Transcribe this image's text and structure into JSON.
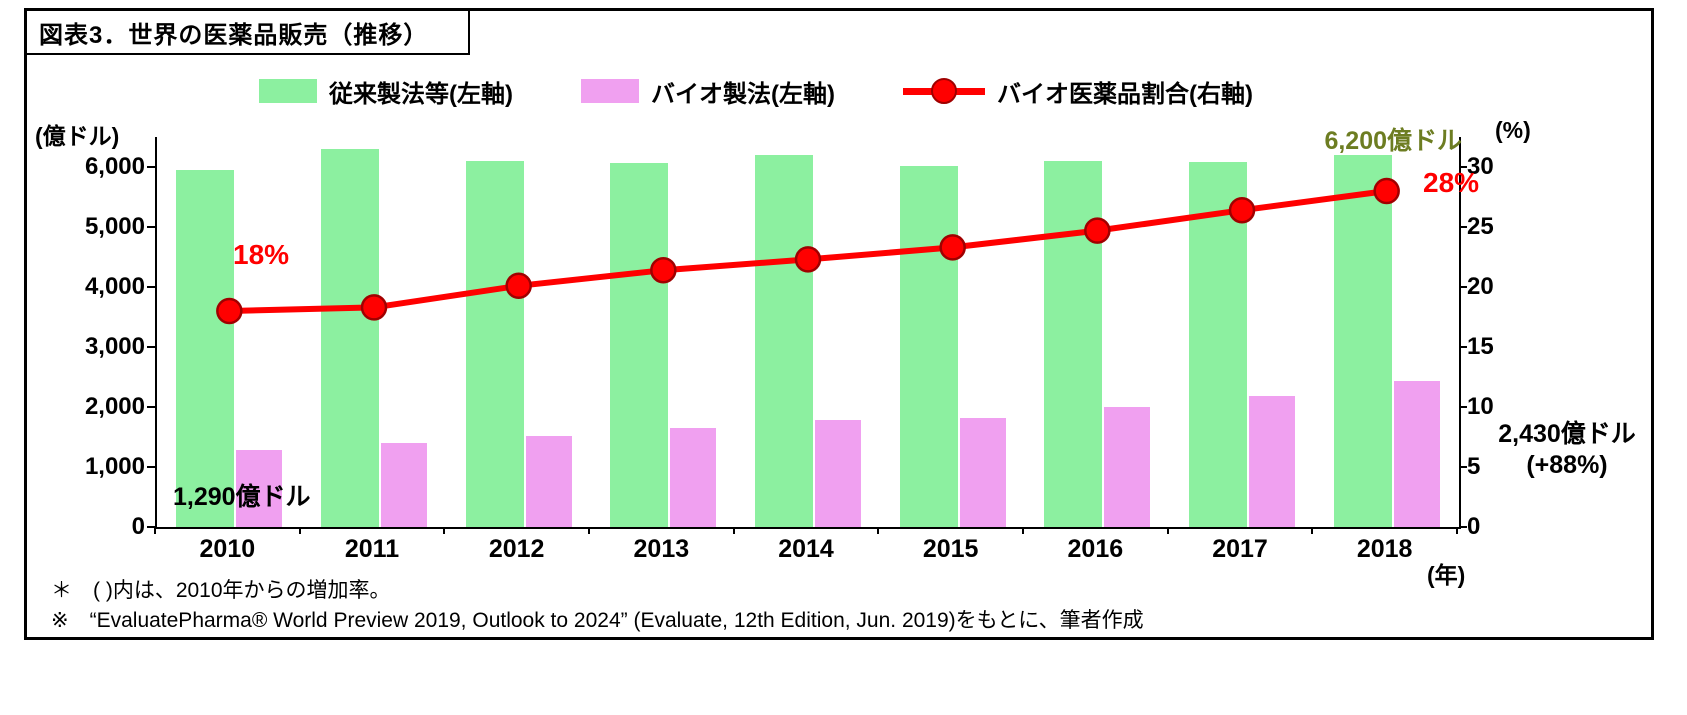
{
  "figure_title": "図表3．世界の医薬品販売（推移）",
  "legend": {
    "items": [
      {
        "label": "従来製法等(左軸)",
        "color": "#8cf0a0"
      },
      {
        "label": "バイオ製法(左軸)",
        "color": "#f0a0f0"
      },
      {
        "label": "バイオ医薬品割合(右軸)",
        "color": "#ff0000"
      }
    ]
  },
  "axes": {
    "left_unit": "(億ドル)",
    "right_unit": "(%)",
    "x_unit": "(年)"
  },
  "annotations": {
    "ratio_2010": "18%",
    "ratio_2018": "28%",
    "ratio_color": "#ff0000",
    "green_2018": "6,200億ドル",
    "green_2018_color": "#6d7d22",
    "pink_2010": "1,290億ドル",
    "pink_2018": "2,430億ドル",
    "pink_2018_growth": "(+88%)"
  },
  "footnotes": {
    "line1": "＊　( )内は、2010年からの増加率。",
    "line2": "※　“EvaluatePharma®  World Preview 2019, Outlook to 2024” (Evaluate, 12th Edition, Jun. 2019)をもとに、筆者作成"
  },
  "chart_data": {
    "type": "bar",
    "subtype": "grouped-bars-with-line-overlay",
    "title": "図表3．世界の医薬品販売（推移）",
    "categories": [
      "2010",
      "2011",
      "2012",
      "2013",
      "2014",
      "2015",
      "2016",
      "2017",
      "2018"
    ],
    "series": [
      {
        "name": "従来製法等(左軸)",
        "type": "bar",
        "axis": "left",
        "color": "#8cf0a0",
        "values": [
          5950,
          6300,
          6100,
          6070,
          6200,
          6020,
          6100,
          6080,
          6200
        ]
      },
      {
        "name": "バイオ製法(左軸)",
        "type": "bar",
        "axis": "left",
        "color": "#f0a0f0",
        "values": [
          1290,
          1400,
          1520,
          1650,
          1780,
          1820,
          2000,
          2180,
          2430
        ]
      },
      {
        "name": "バイオ医薬品割合(右軸)",
        "type": "line",
        "axis": "right",
        "color": "#ff0000",
        "marker_edge_color": "#a00000",
        "values": [
          18,
          18.3,
          20.1,
          21.4,
          22.3,
          23.3,
          24.7,
          26.4,
          28
        ]
      }
    ],
    "left_axis": {
      "unit": "(億ドル)",
      "min": 0,
      "max": 6000,
      "step": 1000,
      "plot_max": 6500
    },
    "right_axis": {
      "unit": "(%)",
      "min": 0,
      "max": 30,
      "step": 5,
      "plot_max": 32.5
    },
    "x_axis": {
      "unit": "(年)"
    },
    "grid": false,
    "legend_position": "top"
  }
}
